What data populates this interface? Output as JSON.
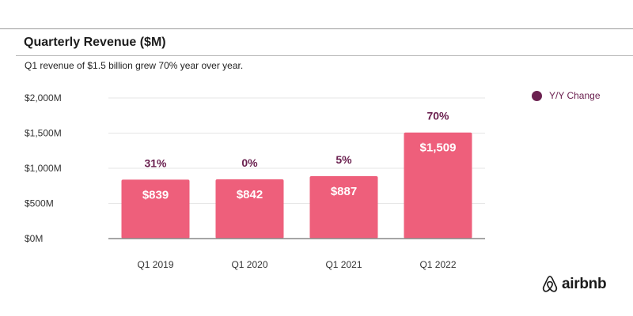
{
  "header": {
    "title": "Quarterly Revenue ($M)",
    "subtitle": "Q1 revenue of $1.5 billion grew 70% year over year."
  },
  "legend": {
    "label": "Y/Y Change",
    "color": "#6b2150"
  },
  "brand": {
    "name": "airbnb",
    "icon": "airbnb-logo-icon"
  },
  "colors": {
    "bar": "#ee5f7b",
    "bar_label": "#ffffff",
    "pct_label": "#6b2150",
    "grid": "#e6e6e6",
    "axis": "#888888",
    "tick_text": "#333333"
  },
  "chart_data": {
    "type": "bar",
    "title": "Quarterly Revenue ($M)",
    "subtitle": "Q1 revenue of $1.5 billion grew 70% year over year.",
    "categories": [
      "Q1 2019",
      "Q1 2020",
      "Q1 2021",
      "Q1 2022"
    ],
    "series": [
      {
        "values": [
          839,
          842,
          887,
          1509
        ],
        "value_labels": [
          "$839",
          "$842",
          "$887",
          "$1,509"
        ],
        "yoy_change": [
          "31%",
          "0%",
          "5%",
          "70%"
        ]
      }
    ],
    "ylim": [
      0,
      2000
    ],
    "yticks": [
      0,
      500,
      1000,
      1500,
      2000
    ],
    "ytick_labels": [
      "$0M",
      "$500M",
      "$1,000M",
      "$1,500M",
      "$2,000M"
    ],
    "xlabel": "",
    "ylabel": "",
    "legend": {
      "entries": [
        "Y/Y Change"
      ],
      "position": "top-right"
    },
    "grid": true
  }
}
